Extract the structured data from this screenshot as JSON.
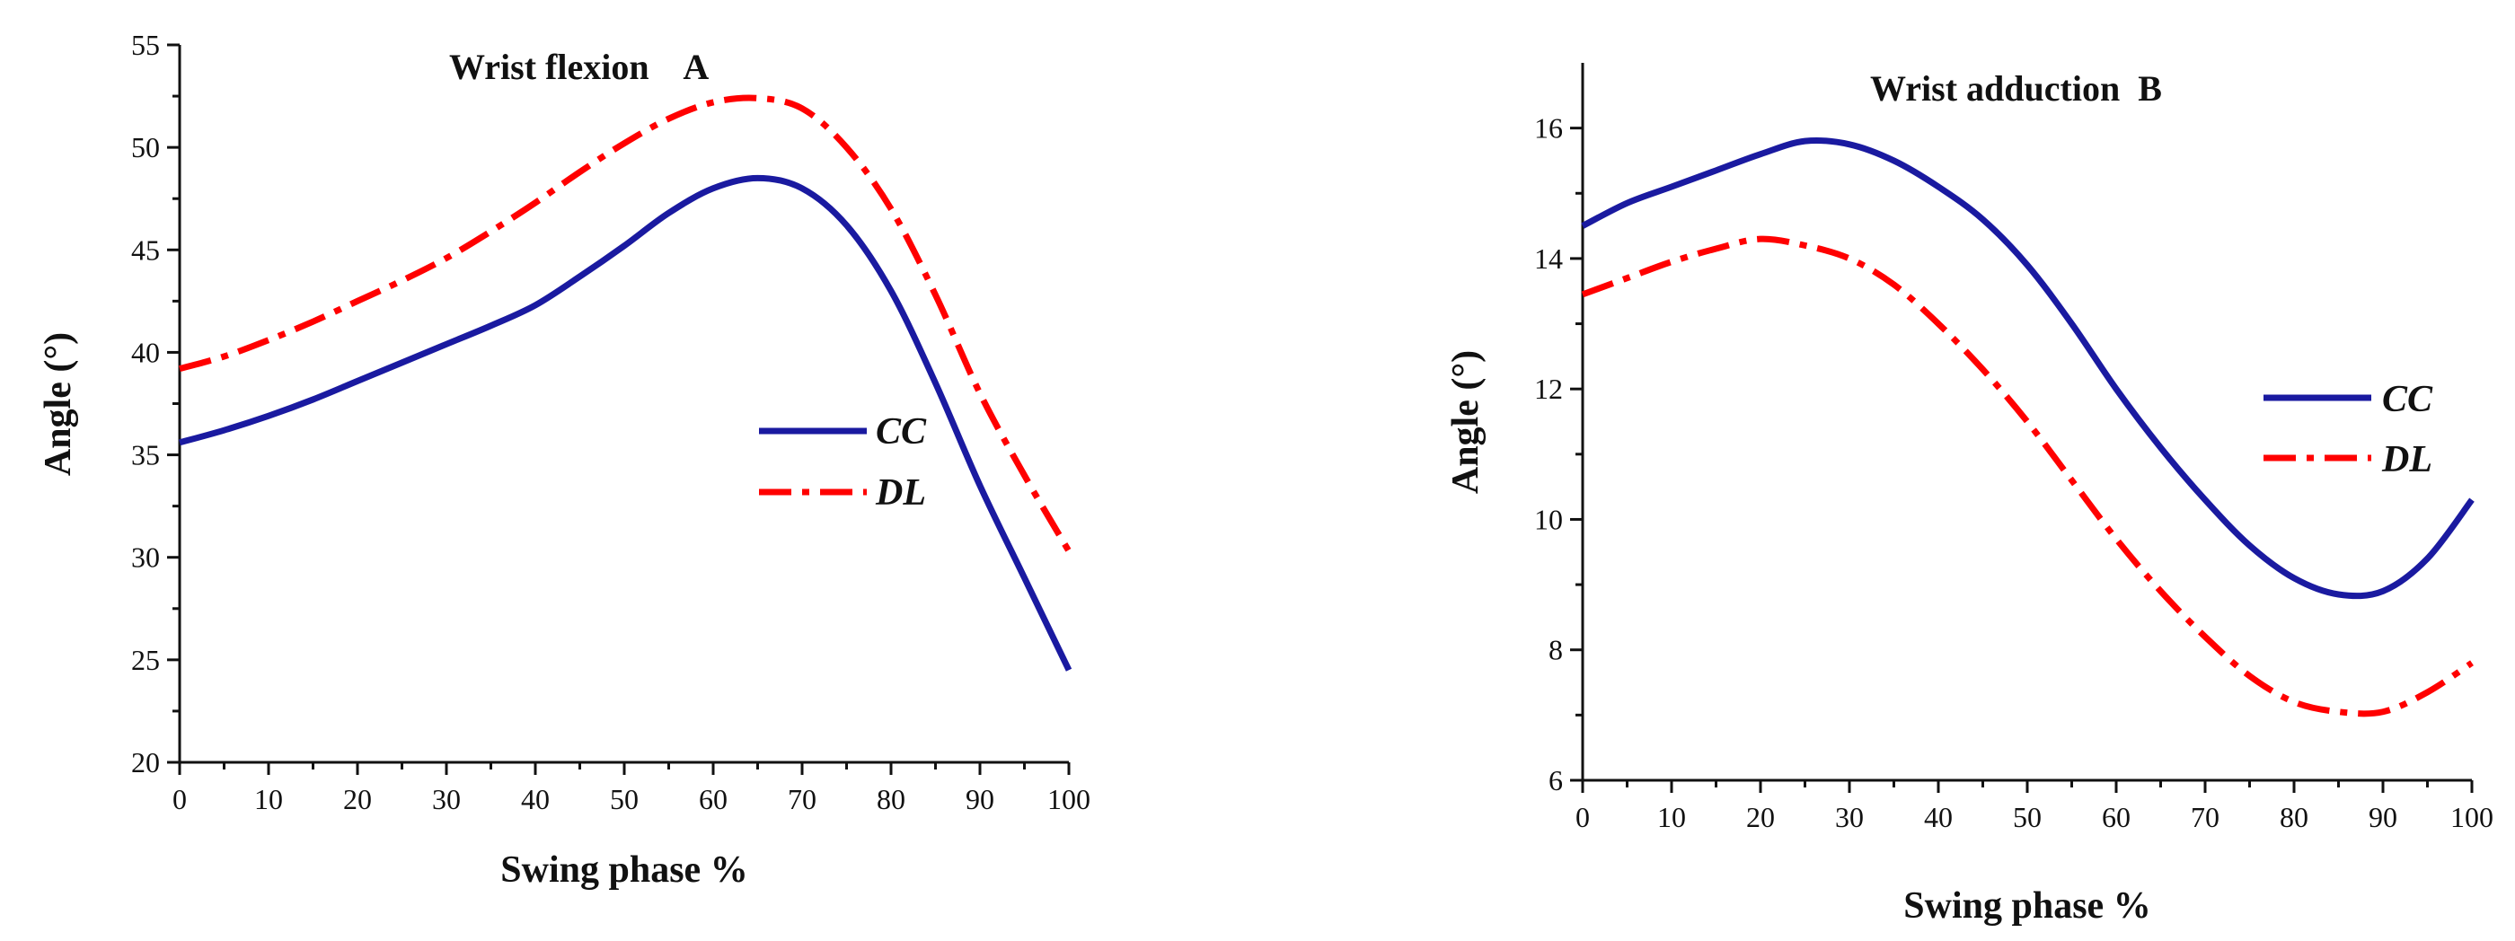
{
  "chart_data": [
    {
      "type": "line",
      "title": "Wrist flexion    A",
      "xlabel": "Swing phase %",
      "ylabel": "Angle (°)",
      "xlim": [
        0,
        100
      ],
      "ylim": [
        20,
        55
      ],
      "xticks": [
        "0",
        "10",
        "20",
        "30",
        "40",
        "50",
        "60",
        "70",
        "80",
        "90",
        "100"
      ],
      "yticks": [
        "20",
        "25",
        "30",
        "35",
        "40",
        "45",
        "50",
        "55"
      ],
      "legend_position": "center-right",
      "series": [
        {
          "name": "CC",
          "color": "#1a1aa0",
          "style": "solid",
          "x": [
            0,
            5,
            10,
            15,
            20,
            25,
            30,
            35,
            40,
            45,
            50,
            55,
            60,
            65,
            70,
            75,
            80,
            85,
            90,
            95,
            100
          ],
          "y": [
            35.6,
            36.2,
            36.9,
            37.7,
            38.6,
            39.5,
            40.4,
            41.3,
            42.3,
            43.7,
            45.2,
            46.8,
            48.0,
            48.5,
            48.0,
            46.2,
            43.0,
            38.5,
            33.5,
            29.0,
            24.5
          ]
        },
        {
          "name": "DL",
          "color": "#ff0000",
          "style": "dashdot",
          "x": [
            0,
            5,
            10,
            15,
            20,
            25,
            30,
            35,
            40,
            45,
            50,
            55,
            60,
            65,
            70,
            75,
            80,
            85,
            90,
            95,
            100
          ],
          "y": [
            39.2,
            39.8,
            40.6,
            41.5,
            42.5,
            43.5,
            44.6,
            45.9,
            47.3,
            48.8,
            50.2,
            51.4,
            52.2,
            52.4,
            51.9,
            50.0,
            47.0,
            42.8,
            38.0,
            34.0,
            30.3
          ]
        }
      ]
    },
    {
      "type": "line",
      "title": "Wrist adduction  B",
      "xlabel": "Swing phase %",
      "ylabel": "Angle (°)",
      "xlim": [
        0,
        100
      ],
      "ylim": [
        6,
        17
      ],
      "xticks": [
        "0",
        "10",
        "20",
        "30",
        "40",
        "50",
        "60",
        "70",
        "80",
        "90",
        "100"
      ],
      "yticks": [
        "6",
        "8",
        "10",
        "12",
        "14",
        "16"
      ],
      "legend_position": "center-right",
      "series": [
        {
          "name": "CC",
          "color": "#1a1aa0",
          "style": "solid",
          "x": [
            0,
            5,
            10,
            15,
            20,
            25,
            30,
            35,
            40,
            45,
            50,
            55,
            60,
            65,
            70,
            75,
            80,
            85,
            90,
            95,
            100
          ],
          "y": [
            14.5,
            14.85,
            15.1,
            15.35,
            15.6,
            15.8,
            15.75,
            15.5,
            15.1,
            14.6,
            13.9,
            13.0,
            12.0,
            11.1,
            10.3,
            9.6,
            9.1,
            8.85,
            8.9,
            9.4,
            10.3
          ]
        },
        {
          "name": "DL",
          "color": "#ff0000",
          "style": "dashdot",
          "x": [
            0,
            5,
            10,
            15,
            20,
            25,
            30,
            35,
            40,
            45,
            50,
            55,
            60,
            65,
            70,
            75,
            80,
            85,
            90,
            95,
            100
          ],
          "y": [
            13.45,
            13.7,
            13.95,
            14.15,
            14.3,
            14.2,
            14.0,
            13.6,
            13.0,
            12.3,
            11.5,
            10.6,
            9.7,
            8.9,
            8.2,
            7.6,
            7.2,
            7.05,
            7.05,
            7.35,
            7.8
          ]
        }
      ]
    }
  ]
}
